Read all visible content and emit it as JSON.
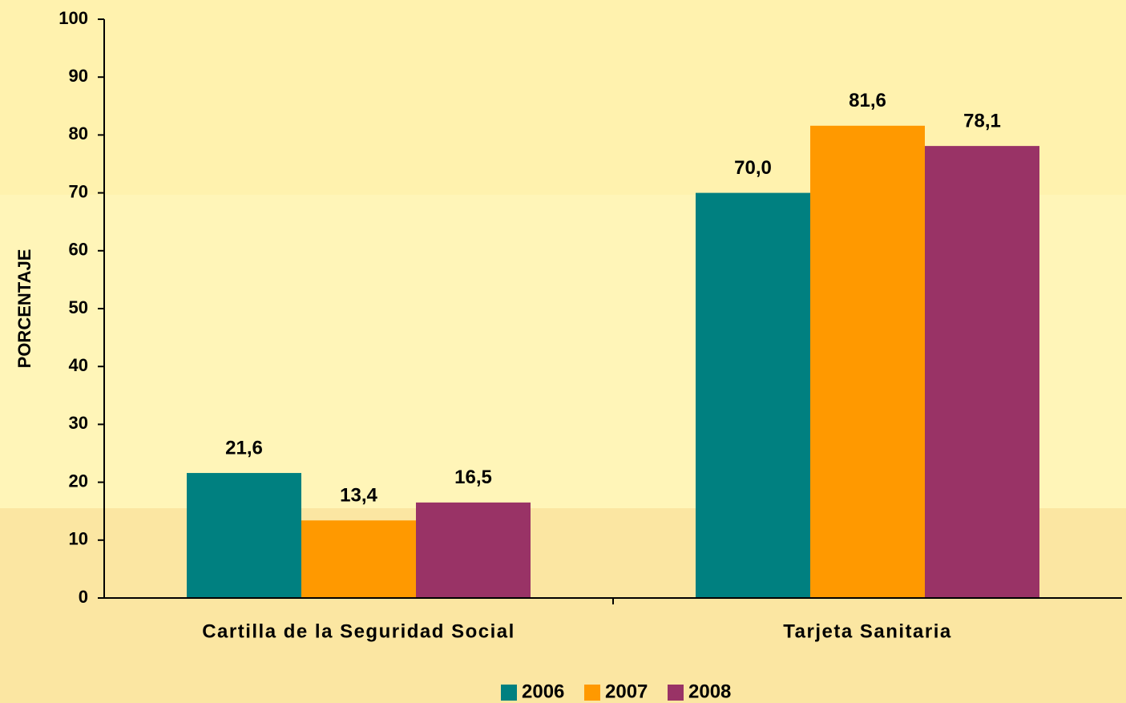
{
  "chart_data": {
    "type": "bar",
    "y_label": "PORCENTAJE",
    "categories": [
      "Cartilla de la Seguridad Social",
      "Tarjeta Sanitaria"
    ],
    "series": [
      {
        "name": "2006",
        "color": "#008080",
        "values": [
          21.6,
          70.0
        ],
        "value_labels": [
          "21,6",
          "70,0"
        ]
      },
      {
        "name": "2007",
        "color": "#FF9900",
        "values": [
          13.4,
          81.6
        ],
        "value_labels": [
          "13,4",
          "81,6"
        ]
      },
      {
        "name": "2008",
        "color": "#993366",
        "values": [
          16.5,
          78.1
        ],
        "value_labels": [
          "16,5",
          "78,1"
        ]
      }
    ],
    "ylim": [
      0,
      100
    ],
    "yticks": [
      0,
      10,
      20,
      30,
      40,
      50,
      60,
      70,
      80,
      90,
      100
    ],
    "grid": false,
    "legend": "bottom"
  }
}
